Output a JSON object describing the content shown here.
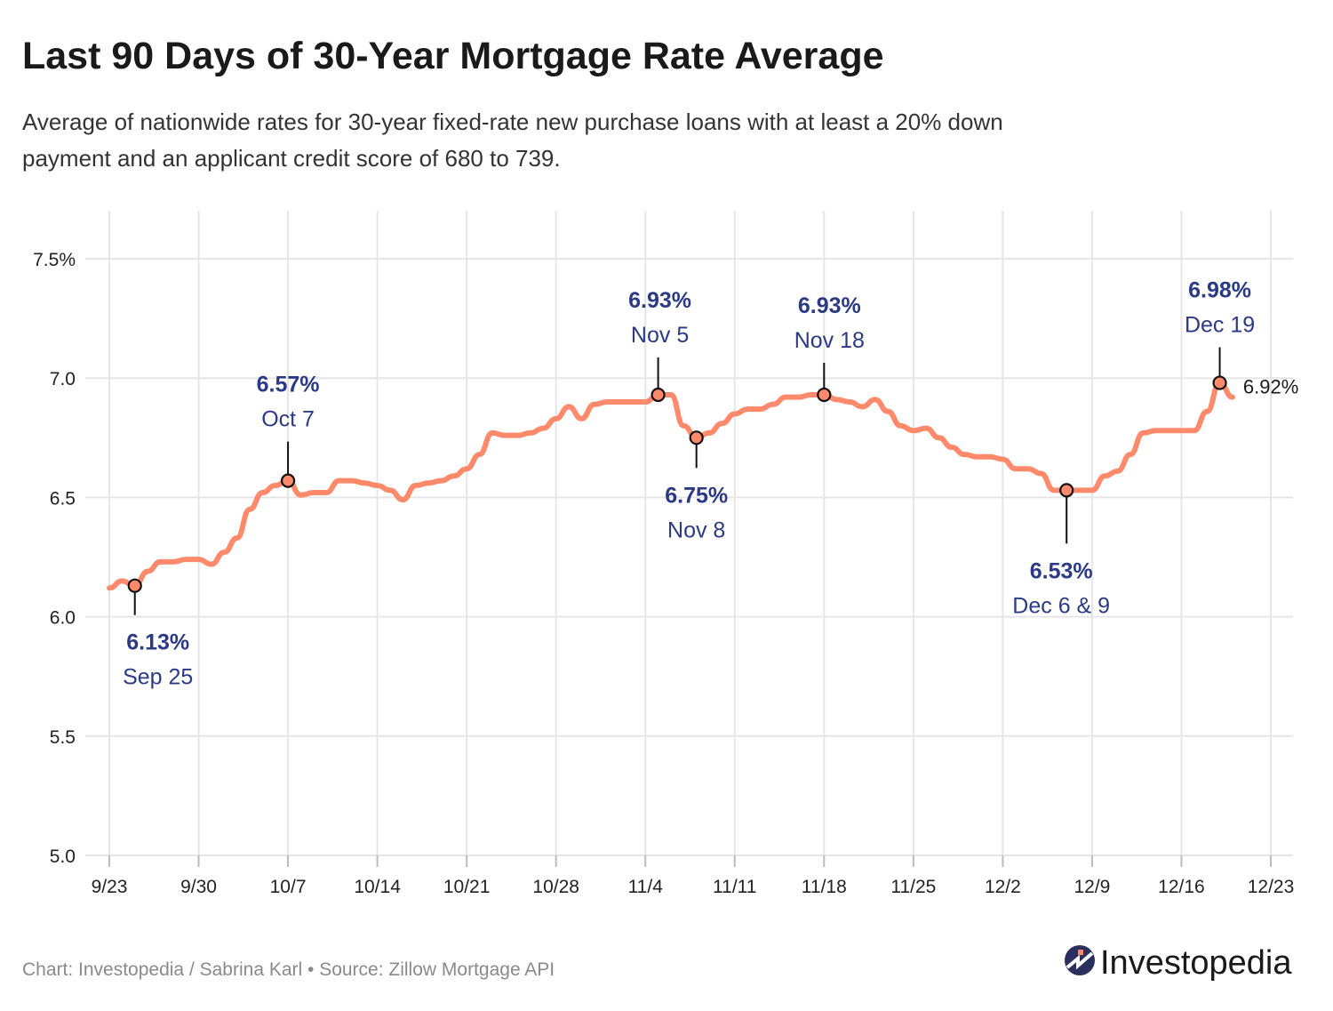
{
  "header": {
    "title": "Last 90 Days of 30-Year Mortgage Rate Average",
    "subtitle_line1": "Average of nationwide rates for 30-year fixed-rate new purchase loans with at least a 20% down",
    "subtitle_line2": "payment and an applicant credit score of 680 to 739."
  },
  "footer": {
    "credit": "Chart: Investopedia / Sabrina Karl • Source: Zillow Mortgage API",
    "logo_text": "Investopedia"
  },
  "colors": {
    "line": "#ff8a6b",
    "annotation": "#2b3a87",
    "grid": "#e6e6e6"
  },
  "chart_data": {
    "type": "line",
    "title": "Last 90 Days of 30-Year Mortgage Rate Average",
    "xlabel": "",
    "ylabel": "",
    "ylim": [
      5.0,
      7.5
    ],
    "grid": true,
    "y_ticks": [
      "5.0",
      "5.5",
      "6.0",
      "6.5",
      "7.0",
      "7.5%"
    ],
    "y_tick_values": [
      5.0,
      5.5,
      6.0,
      6.5,
      7.0,
      7.5
    ],
    "x_ticks": [
      "9/23",
      "9/30",
      "10/7",
      "10/14",
      "10/21",
      "10/28",
      "11/4",
      "11/11",
      "11/18",
      "11/25",
      "12/2",
      "12/9",
      "12/16",
      "12/23"
    ],
    "x": [
      "9/23",
      "9/24",
      "9/25",
      "9/26",
      "9/27",
      "9/28",
      "9/29",
      "9/30",
      "10/1",
      "10/2",
      "10/3",
      "10/4",
      "10/5",
      "10/6",
      "10/7",
      "10/8",
      "10/9",
      "10/10",
      "10/11",
      "10/12",
      "10/13",
      "10/14",
      "10/15",
      "10/16",
      "10/17",
      "10/18",
      "10/19",
      "10/20",
      "10/21",
      "10/22",
      "10/23",
      "10/24",
      "10/25",
      "10/26",
      "10/27",
      "10/28",
      "10/29",
      "10/30",
      "10/31",
      "11/1",
      "11/2",
      "11/3",
      "11/4",
      "11/5",
      "11/6",
      "11/7",
      "11/8",
      "11/9",
      "11/10",
      "11/11",
      "11/12",
      "11/13",
      "11/14",
      "11/15",
      "11/16",
      "11/17",
      "11/18",
      "11/19",
      "11/20",
      "11/21",
      "11/22",
      "11/23",
      "11/24",
      "11/25",
      "11/26",
      "11/27",
      "11/28",
      "11/29",
      "11/30",
      "12/1",
      "12/2",
      "12/3",
      "12/4",
      "12/5",
      "12/6",
      "12/7",
      "12/8",
      "12/9",
      "12/10",
      "12/11",
      "12/12",
      "12/13",
      "12/14",
      "12/15",
      "12/16",
      "12/17",
      "12/18",
      "12/19",
      "12/20"
    ],
    "values": [
      6.12,
      6.15,
      6.13,
      6.19,
      6.23,
      6.23,
      6.24,
      6.24,
      6.22,
      6.27,
      6.33,
      6.45,
      6.52,
      6.55,
      6.57,
      6.51,
      6.52,
      6.52,
      6.57,
      6.57,
      6.56,
      6.55,
      6.53,
      6.49,
      6.55,
      6.56,
      6.57,
      6.59,
      6.62,
      6.68,
      6.77,
      6.76,
      6.76,
      6.77,
      6.79,
      6.83,
      6.88,
      6.83,
      6.89,
      6.9,
      6.9,
      6.9,
      6.9,
      6.93,
      6.93,
      6.8,
      6.75,
      6.77,
      6.81,
      6.85,
      6.87,
      6.87,
      6.89,
      6.92,
      6.92,
      6.93,
      6.93,
      6.91,
      6.9,
      6.88,
      6.91,
      6.86,
      6.8,
      6.78,
      6.79,
      6.75,
      6.71,
      6.68,
      6.67,
      6.67,
      6.66,
      6.62,
      6.62,
      6.6,
      6.53,
      6.53,
      6.53,
      6.53,
      6.59,
      6.61,
      6.68,
      6.77,
      6.78,
      6.78,
      6.78,
      6.78,
      6.86,
      6.98,
      6.92
    ],
    "annotations": [
      {
        "date": "9/25",
        "value_label": "6.13%",
        "date_label": "Sep 25",
        "value": 6.13,
        "placement": "below"
      },
      {
        "date": "10/7",
        "value_label": "6.57%",
        "date_label": "Oct 7",
        "value": 6.57,
        "placement": "above"
      },
      {
        "date": "11/5",
        "value_label": "6.93%",
        "date_label": "Nov 5",
        "value": 6.93,
        "placement": "above"
      },
      {
        "date": "11/8",
        "value_label": "6.75%",
        "date_label": "Nov 8",
        "value": 6.75,
        "placement": "below"
      },
      {
        "date": "11/18",
        "value_label": "6.93%",
        "date_label": "Nov 18",
        "value": 6.93,
        "placement": "above"
      },
      {
        "date": "12/7",
        "value_label": "6.53%",
        "date_label": "Dec 6 & 9",
        "value": 6.53,
        "placement": "below"
      },
      {
        "date": "12/19",
        "value_label": "6.98%",
        "date_label": "Dec 19",
        "value": 6.98,
        "placement": "above"
      }
    ],
    "end_label": "6.92%"
  }
}
